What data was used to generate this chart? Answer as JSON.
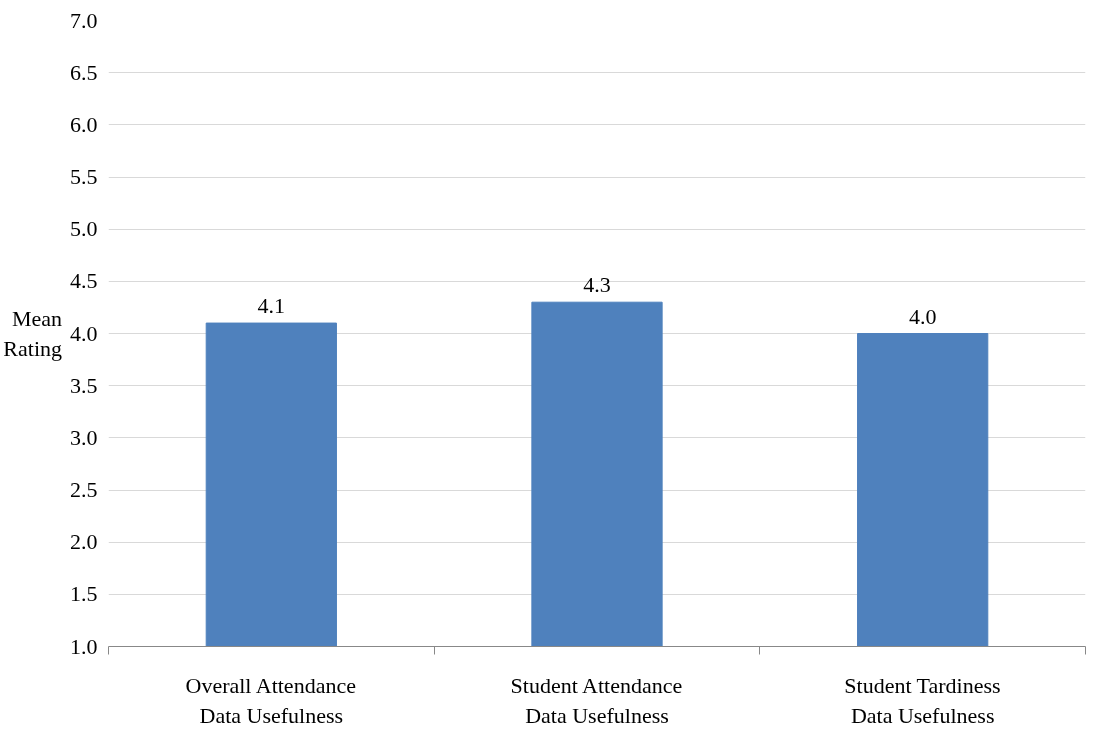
{
  "chart_data": {
    "type": "bar",
    "ylabel": "Mean Rating",
    "categories": [
      "Overall Attendance Data Usefulness",
      "Student Attendance Data Usefulness",
      "Student Tardiness Data Usefulness"
    ],
    "values": [
      4.1,
      4.3,
      4.0
    ],
    "color": "#4f81bd",
    "value_labels": [
      "4.1",
      "4.3",
      "4.0"
    ],
    "ylim": [
      1,
      7
    ],
    "yticks": [
      {
        "value": 1,
        "label": "1.0"
      },
      {
        "value": 1.5,
        "label": "1.5"
      },
      {
        "value": 2,
        "label": "2.0"
      },
      {
        "value": 2.5,
        "label": "2.5"
      },
      {
        "value": 3,
        "label": "3.0"
      },
      {
        "value": 3.5,
        "label": "3.5"
      },
      {
        "value": 4,
        "label": "4.0"
      },
      {
        "value": 4.5,
        "label": "4.5"
      },
      {
        "value": 5,
        "label": "5.0"
      },
      {
        "value": 5.5,
        "label": "5.5"
      },
      {
        "value": 6,
        "label": "6.0"
      },
      {
        "value": 6.5,
        "label": "6.5"
      },
      {
        "value": 7,
        "label": "7.0"
      }
    ],
    "grid": "y"
  }
}
